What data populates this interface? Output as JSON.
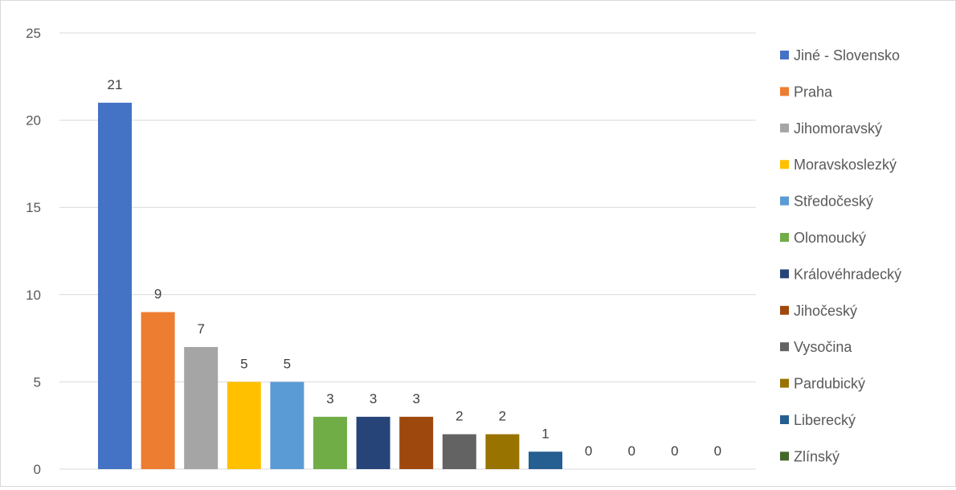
{
  "chart_data": {
    "type": "bar",
    "title": "",
    "xlabel": "",
    "ylabel": "",
    "ylim": [
      0,
      25
    ],
    "yticks": [
      0,
      5,
      10,
      15,
      20,
      25
    ],
    "grid": true,
    "legend_position": "right",
    "data_labels": true,
    "categories": [
      "Jiné - Slovensko",
      "Praha",
      "Jihomoravský",
      "Moravskoslezký",
      "Středočeský",
      "Olomoucký",
      "Královéhradecký",
      "Jihočeský",
      "Vysočina",
      "Pardubický",
      "Liberecký",
      "Zlínský",
      "",
      "",
      ""
    ],
    "values": [
      21,
      9,
      7,
      5,
      5,
      3,
      3,
      3,
      2,
      2,
      1,
      0,
      0,
      0,
      0
    ],
    "colors": [
      "#4472c4",
      "#ed7d31",
      "#a5a5a5",
      "#ffc000",
      "#5b9bd5",
      "#70ad47",
      "#264478",
      "#9e480e",
      "#636363",
      "#997300",
      "#255e91",
      "#43682b",
      "#698ed0",
      "#f1975a",
      "#b7b7b7"
    ],
    "legend": [
      {
        "label": "Jiné - Slovensko",
        "color": "#4472c4"
      },
      {
        "label": "Praha",
        "color": "#ed7d31"
      },
      {
        "label": "Jihomoravský",
        "color": "#a5a5a5"
      },
      {
        "label": "Moravskoslezký",
        "color": "#ffc000"
      },
      {
        "label": "Středočeský",
        "color": "#5b9bd5"
      },
      {
        "label": "Olomoucký",
        "color": "#70ad47"
      },
      {
        "label": "Královéhradecký",
        "color": "#264478"
      },
      {
        "label": "Jihočeský",
        "color": "#9e480e"
      },
      {
        "label": "Vysočina",
        "color": "#636363"
      },
      {
        "label": "Pardubický",
        "color": "#997300"
      },
      {
        "label": "Liberecký",
        "color": "#255e91"
      },
      {
        "label": "Zlínský",
        "color": "#43682b"
      }
    ]
  }
}
